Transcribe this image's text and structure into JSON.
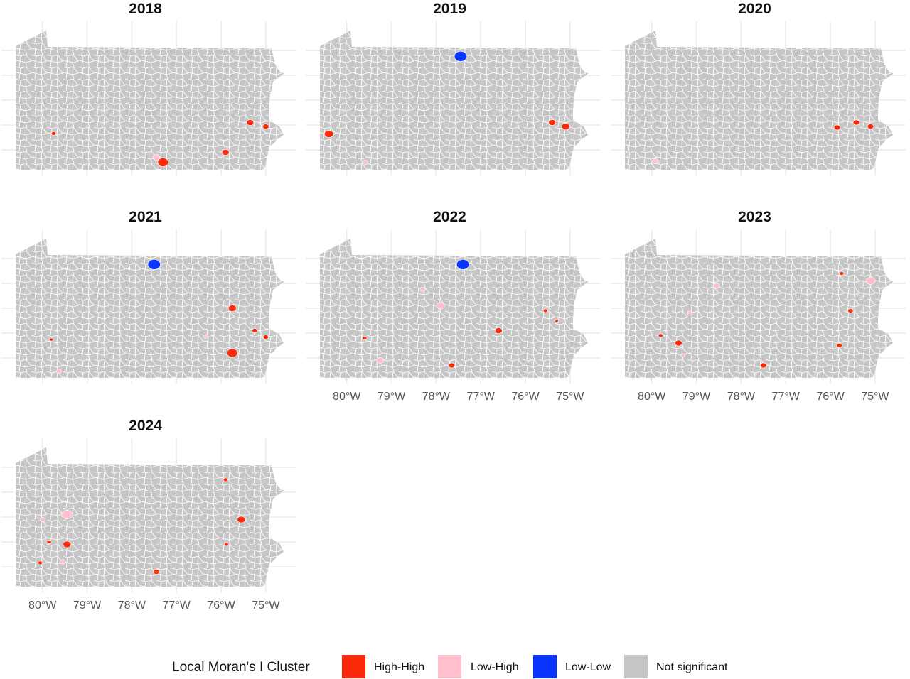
{
  "colors": {
    "high_high": "#fa2a0a",
    "low_high": "#ffbfcc",
    "low_low": "#0a35ff",
    "not_significant": "#c6c6c6",
    "boundary": "#ffffff",
    "grid": "#ebebeb"
  },
  "axis": {
    "lon_ticks": [
      "80°W",
      "79°W",
      "78°W",
      "77°W",
      "76°W",
      "75°W"
    ],
    "lon_range": [
      -80.6,
      -74.6
    ],
    "lat_range": [
      39.6,
      42.4
    ]
  },
  "panels": [
    {
      "year": "2018",
      "clusters": [
        {
          "type": "high_high",
          "lon": -79.75,
          "lat": 40.33,
          "size": 0.05
        },
        {
          "type": "high_high",
          "lon": -77.3,
          "lat": 39.75,
          "size": 0.12
        },
        {
          "type": "low_high",
          "lon": -77.45,
          "lat": 39.85,
          "size": 0.08
        },
        {
          "type": "high_high",
          "lon": -75.9,
          "lat": 39.95,
          "size": 0.08
        },
        {
          "type": "high_high",
          "lon": -75.35,
          "lat": 40.55,
          "size": 0.08
        },
        {
          "type": "high_high",
          "lon": -75.0,
          "lat": 40.47,
          "size": 0.07
        }
      ]
    },
    {
      "year": "2019",
      "clusters": [
        {
          "type": "low_low",
          "lon": -77.45,
          "lat": 41.88,
          "size": 0.14
        },
        {
          "type": "high_high",
          "lon": -80.4,
          "lat": 40.32,
          "size": 0.1
        },
        {
          "type": "low_high",
          "lon": -79.58,
          "lat": 39.75,
          "size": 0.06
        },
        {
          "type": "high_high",
          "lon": -75.4,
          "lat": 40.55,
          "size": 0.08
        },
        {
          "type": "high_high",
          "lon": -75.1,
          "lat": 40.47,
          "size": 0.09
        }
      ]
    },
    {
      "year": "2020",
      "clusters": [
        {
          "type": "low_high",
          "lon": -79.92,
          "lat": 39.77,
          "size": 0.07
        },
        {
          "type": "high_high",
          "lon": -75.85,
          "lat": 40.45,
          "size": 0.07
        },
        {
          "type": "high_high",
          "lon": -75.42,
          "lat": 40.55,
          "size": 0.07
        },
        {
          "type": "high_high",
          "lon": -75.1,
          "lat": 40.47,
          "size": 0.07
        }
      ]
    },
    {
      "year": "2021",
      "clusters": [
        {
          "type": "low_low",
          "lon": -77.5,
          "lat": 41.88,
          "size": 0.14
        },
        {
          "type": "high_high",
          "lon": -79.8,
          "lat": 40.37,
          "size": 0.04
        },
        {
          "type": "low_high",
          "lon": -79.63,
          "lat": 39.73,
          "size": 0.06
        },
        {
          "type": "low_high",
          "lon": -76.35,
          "lat": 40.43,
          "size": 0.05
        },
        {
          "type": "high_high",
          "lon": -75.75,
          "lat": 41.0,
          "size": 0.09
        },
        {
          "type": "high_high",
          "lon": -75.25,
          "lat": 40.55,
          "size": 0.06
        },
        {
          "type": "high_high",
          "lon": -75.0,
          "lat": 40.42,
          "size": 0.06
        },
        {
          "type": "high_high",
          "lon": -75.75,
          "lat": 40.1,
          "size": 0.12
        }
      ]
    },
    {
      "year": "2022",
      "clusters": [
        {
          "type": "low_low",
          "lon": -77.4,
          "lat": 41.88,
          "size": 0.14
        },
        {
          "type": "high_high",
          "lon": -79.6,
          "lat": 40.4,
          "size": 0.05
        },
        {
          "type": "low_high",
          "lon": -79.25,
          "lat": 39.95,
          "size": 0.08
        },
        {
          "type": "low_high",
          "lon": -78.3,
          "lat": 41.38,
          "size": 0.06
        },
        {
          "type": "low_high",
          "lon": -77.9,
          "lat": 41.05,
          "size": 0.09
        },
        {
          "type": "high_high",
          "lon": -77.65,
          "lat": 39.85,
          "size": 0.07
        },
        {
          "type": "high_high",
          "lon": -76.6,
          "lat": 40.55,
          "size": 0.08
        },
        {
          "type": "high_high",
          "lon": -75.55,
          "lat": 40.95,
          "size": 0.05
        },
        {
          "type": "high_high",
          "lon": -75.3,
          "lat": 40.75,
          "size": 0.04
        }
      ]
    },
    {
      "year": "2023",
      "clusters": [
        {
          "type": "high_high",
          "lon": -79.8,
          "lat": 40.45,
          "size": 0.05
        },
        {
          "type": "high_high",
          "lon": -79.4,
          "lat": 40.3,
          "size": 0.08
        },
        {
          "type": "low_high",
          "lon": -79.15,
          "lat": 40.9,
          "size": 0.06
        },
        {
          "type": "low_high",
          "lon": -79.3,
          "lat": 40.05,
          "size": 0.05
        },
        {
          "type": "low_high",
          "lon": -78.55,
          "lat": 41.45,
          "size": 0.07
        },
        {
          "type": "high_high",
          "lon": -77.5,
          "lat": 39.85,
          "size": 0.07
        },
        {
          "type": "high_high",
          "lon": -75.8,
          "lat": 40.25,
          "size": 0.06
        },
        {
          "type": "high_high",
          "lon": -75.55,
          "lat": 40.95,
          "size": 0.06
        },
        {
          "type": "high_high",
          "lon": -75.75,
          "lat": 41.7,
          "size": 0.05
        },
        {
          "type": "low_high",
          "lon": -75.1,
          "lat": 41.55,
          "size": 0.1
        }
      ]
    },
    {
      "year": "2024",
      "clusters": [
        {
          "type": "low_high",
          "lon": -79.45,
          "lat": 41.05,
          "size": 0.12
        },
        {
          "type": "low_high",
          "lon": -80.0,
          "lat": 40.95,
          "size": 0.06
        },
        {
          "type": "high_high",
          "lon": -79.85,
          "lat": 40.5,
          "size": 0.05
        },
        {
          "type": "high_high",
          "lon": -79.45,
          "lat": 40.45,
          "size": 0.09
        },
        {
          "type": "low_high",
          "lon": -79.55,
          "lat": 40.1,
          "size": 0.06
        },
        {
          "type": "high_high",
          "lon": -80.05,
          "lat": 40.08,
          "size": 0.05
        },
        {
          "type": "high_high",
          "lon": -77.45,
          "lat": 39.9,
          "size": 0.07
        },
        {
          "type": "high_high",
          "lon": -75.88,
          "lat": 40.45,
          "size": 0.05
        },
        {
          "type": "high_high",
          "lon": -75.55,
          "lat": 40.95,
          "size": 0.09
        },
        {
          "type": "high_high",
          "lon": -75.9,
          "lat": 41.75,
          "size": 0.05
        }
      ]
    }
  ],
  "legend": {
    "title": "Local Moran's I Cluster",
    "items": [
      {
        "label": "High-High",
        "key": "high_high"
      },
      {
        "label": "Low-High",
        "key": "low_high"
      },
      {
        "label": "Low-Low",
        "key": "low_low"
      },
      {
        "label": "Not significant",
        "key": "not_significant"
      }
    ]
  }
}
